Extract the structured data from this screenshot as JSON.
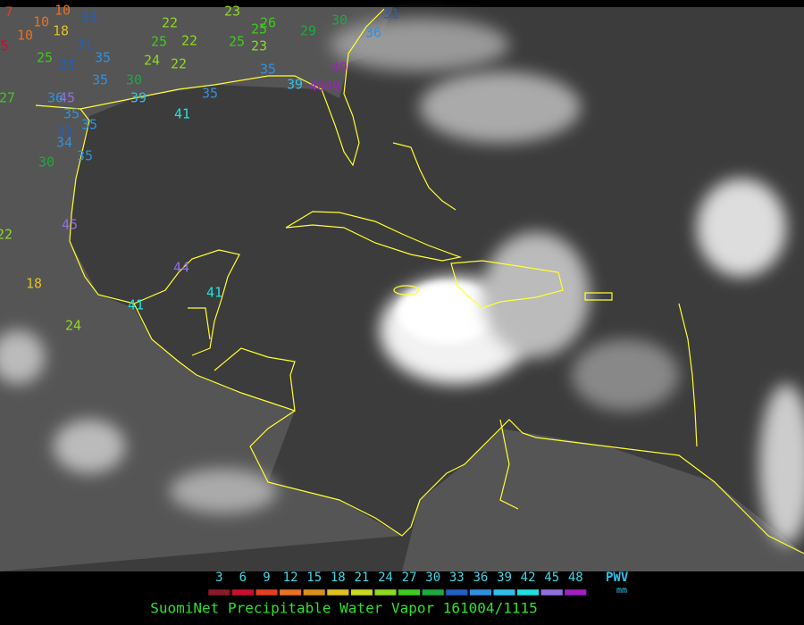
{
  "stations": [
    {
      "value": 7
    },
    {
      "value": 10
    },
    {
      "value": 10
    },
    {
      "value": 18
    },
    {
      "value": 10
    },
    {
      "value": 5
    },
    {
      "value": 25
    },
    {
      "value": 33
    },
    {
      "value": 33
    },
    {
      "value": 31
    },
    {
      "value": 35
    },
    {
      "value": 22
    },
    {
      "value": 25
    },
    {
      "value": 22
    },
    {
      "value": 24
    },
    {
      "value": 22
    },
    {
      "value": 23
    },
    {
      "value": 26
    },
    {
      "value": 25
    },
    {
      "value": 25
    },
    {
      "value": 23
    },
    {
      "value": 29
    },
    {
      "value": 30
    },
    {
      "value": 31
    },
    {
      "value": 36
    },
    {
      "value": 35
    },
    {
      "value": 49
    },
    {
      "value": 48
    },
    {
      "value": 49
    },
    {
      "value": 39
    },
    {
      "value": 30
    },
    {
      "value": 35
    },
    {
      "value": 35
    },
    {
      "value": 27
    },
    {
      "value": 36
    },
    {
      "value": 39
    },
    {
      "value": 45
    },
    {
      "value": 35
    },
    {
      "value": 35
    },
    {
      "value": 33
    },
    {
      "value": 34
    },
    {
      "value": 35
    },
    {
      "value": 41
    },
    {
      "value": 30
    },
    {
      "value": 45
    },
    {
      "value": 22
    },
    {
      "value": 18
    },
    {
      "value": 44
    },
    {
      "value": 41
    },
    {
      "value": 41
    },
    {
      "value": 24
    }
  ],
  "colorbar": {
    "ticks": [
      3,
      6,
      9,
      12,
      15,
      18,
      21,
      24,
      27,
      30,
      33,
      36,
      39,
      42,
      45,
      48
    ],
    "colors": [
      "#8b1a2a",
      "#c8102e",
      "#e04020",
      "#e87020",
      "#d89020",
      "#e0c020",
      "#c8d820",
      "#90d820",
      "#40c820",
      "#20a840",
      "#2060c0",
      "#3090e0",
      "#30c0e8",
      "#20e0e0",
      "#9070e0",
      "#a020c0"
    ],
    "label": "PWV",
    "unit": "mm"
  },
  "title": "SuomiNet Precipitable Water Vapor 161004/1115"
}
